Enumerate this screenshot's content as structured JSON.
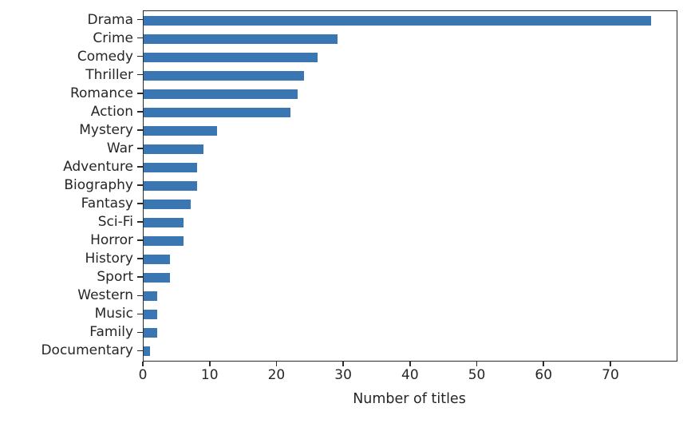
{
  "chart_data": {
    "type": "bar",
    "orientation": "horizontal",
    "title": "",
    "xlabel": "Number of titles",
    "ylabel": "",
    "categories": [
      "Drama",
      "Crime",
      "Comedy",
      "Thriller",
      "Romance",
      "Action",
      "Mystery",
      "War",
      "Adventure",
      "Biography",
      "Fantasy",
      "Sci-Fi",
      "Horror",
      "History",
      "Sport",
      "Western",
      "Music",
      "Family",
      "Documentary"
    ],
    "values": [
      76,
      29,
      26,
      24,
      23,
      22,
      11,
      9,
      8,
      8,
      7,
      6,
      6,
      4,
      4,
      2,
      2,
      2,
      1
    ],
    "xlim": [
      0,
      79.8
    ],
    "xticks": [
      0,
      10,
      20,
      30,
      40,
      50,
      60,
      70
    ],
    "grid": false,
    "legend": null,
    "bar_color": "#3a76b1",
    "axis_color": "#2b2b2b",
    "text_color": "#262626",
    "background_color": "#ffffff"
  }
}
